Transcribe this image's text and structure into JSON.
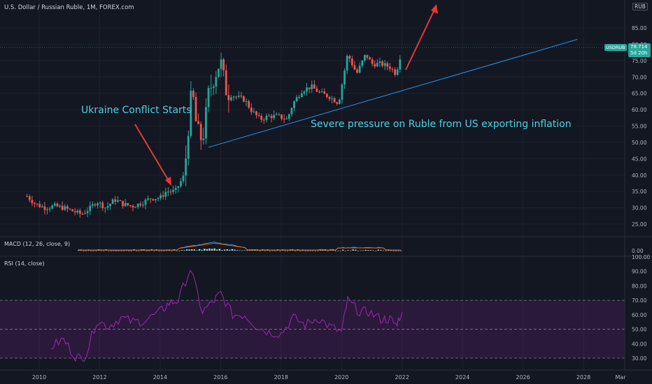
{
  "header": {
    "title": "U.S. Dollar / Russian Ruble, 1M, FOREX.com",
    "currency_badge": "RUB"
  },
  "price_label": {
    "symbol": "USDRUB",
    "price": "78.714",
    "countdown": "5d 20h"
  },
  "indicators": {
    "macd_label": "MACD (12, 26, close, 9)",
    "macd_scale": [
      "0.00"
    ],
    "rsi_label": "RSI (14, close)",
    "rsi_scale": [
      "100.00",
      "90.00",
      "80.00",
      "70.00",
      "60.00",
      "50.00",
      "40.00",
      "30.00"
    ]
  },
  "annotations": {
    "conflict": "Ukraine Conflict Starts",
    "pressure": "Severe pressure on Ruble from US exporting inflation"
  },
  "colors": {
    "up": "#26a69a",
    "down": "#ef5350",
    "trendline": "#2196f3",
    "arrow": "#e53935",
    "annotation_text": "#4dd0e1",
    "rsi": "#9c27b0"
  },
  "chart_data": {
    "type": "candlestick",
    "x_ticks": [
      "2010",
      "2012",
      "2014",
      "2016",
      "2018",
      "2020",
      "2022",
      "2024",
      "2026",
      "2028",
      "Mar"
    ],
    "y_ticks": [
      "85.00",
      "80.00",
      "75.00",
      "70.00",
      "65.00",
      "60.00",
      "55.00",
      "50.00",
      "45.00",
      "40.00",
      "35.00",
      "30.00",
      "25.00"
    ],
    "ylim": [
      20,
      88
    ],
    "price_series": [
      [
        2009.6,
        33.5
      ],
      [
        2009.9,
        31
      ],
      [
        2010.2,
        30
      ],
      [
        2010.5,
        30.5
      ],
      [
        2010.8,
        30
      ],
      [
        2011.1,
        29
      ],
      [
        2011.4,
        28
      ],
      [
        2011.7,
        30
      ],
      [
        2011.9,
        32
      ],
      [
        2012.2,
        30
      ],
      [
        2012.5,
        32.5
      ],
      [
        2012.8,
        31
      ],
      [
        2013.1,
        30.5
      ],
      [
        2013.4,
        31.5
      ],
      [
        2013.7,
        33
      ],
      [
        2014.0,
        33
      ],
      [
        2014.2,
        35
      ],
      [
        2014.5,
        35
      ],
      [
        2014.8,
        40
      ],
      [
        2014.95,
        56
      ],
      [
        2015.05,
        67
      ],
      [
        2015.2,
        55
      ],
      [
        2015.4,
        50
      ],
      [
        2015.6,
        65
      ],
      [
        2015.8,
        70
      ],
      [
        2016.0,
        75
      ],
      [
        2016.2,
        65
      ],
      [
        2016.5,
        64
      ],
      [
        2016.8,
        63
      ],
      [
        2017.0,
        60
      ],
      [
        2017.3,
        57
      ],
      [
        2017.6,
        58
      ],
      [
        2017.9,
        58
      ],
      [
        2018.2,
        57
      ],
      [
        2018.4,
        62
      ],
      [
        2018.7,
        66
      ],
      [
        2019.0,
        67
      ],
      [
        2019.3,
        65
      ],
      [
        2019.6,
        64
      ],
      [
        2019.9,
        62
      ],
      [
        2020.2,
        77
      ],
      [
        2020.5,
        71
      ],
      [
        2020.8,
        77
      ],
      [
        2021.0,
        74
      ],
      [
        2021.3,
        74
      ],
      [
        2021.6,
        73
      ],
      [
        2021.8,
        71
      ],
      [
        2022.0,
        78.7
      ]
    ],
    "trendline": {
      "from": [
        2015.6,
        48.5
      ],
      "to": [
        2027.8,
        81.5
      ]
    },
    "rsi_values": [
      [
        2010.4,
        38
      ],
      [
        2010.8,
        43
      ],
      [
        2011.2,
        31
      ],
      [
        2011.5,
        29
      ],
      [
        2011.9,
        56
      ],
      [
        2012.3,
        52
      ],
      [
        2012.7,
        58
      ],
      [
        2013.1,
        55
      ],
      [
        2013.5,
        56
      ],
      [
        2014.0,
        62
      ],
      [
        2014.3,
        68
      ],
      [
        2014.6,
        70
      ],
      [
        2015.0,
        92
      ],
      [
        2015.4,
        62
      ],
      [
        2015.8,
        70
      ],
      [
        2016.0,
        75
      ],
      [
        2016.4,
        60
      ],
      [
        2016.8,
        60
      ],
      [
        2017.2,
        52
      ],
      [
        2017.6,
        48
      ],
      [
        2018.0,
        47
      ],
      [
        2018.4,
        58
      ],
      [
        2018.8,
        53
      ],
      [
        2019.2,
        58
      ],
      [
        2019.6,
        52
      ],
      [
        2020.0,
        48
      ],
      [
        2020.2,
        70
      ],
      [
        2020.6,
        62
      ],
      [
        2020.9,
        62
      ],
      [
        2021.3,
        57
      ],
      [
        2021.6,
        57
      ],
      [
        2021.8,
        53
      ],
      [
        2022.0,
        62
      ]
    ],
    "rsi_levels": [
      70,
      50,
      30
    ]
  }
}
